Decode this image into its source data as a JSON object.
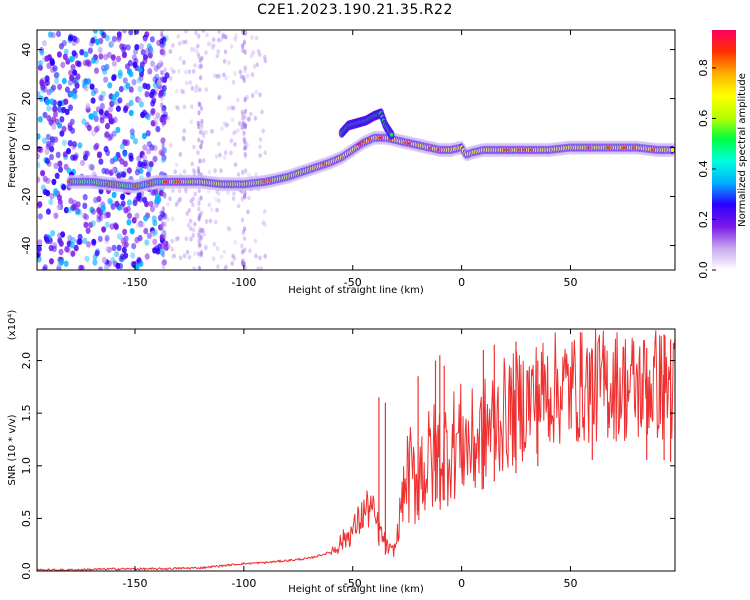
{
  "title": "C2E1.2023.190.21.35.R22",
  "chart_data": [
    {
      "type": "heatmap",
      "xlabel": "Height of straight line (km)",
      "ylabel": "Frequency (Hz)",
      "xlim": [
        -195,
        98
      ],
      "ylim": [
        -50,
        48
      ],
      "xticks": [
        -150,
        -100,
        -50,
        0,
        50
      ],
      "yticks": [
        -40,
        -20,
        0,
        20,
        40
      ],
      "colorbar": {
        "label": "Normalized spectral amplitude",
        "range": [
          0.0,
          0.95
        ],
        "ticks": [
          0.0,
          0.2,
          0.4,
          0.6,
          0.8
        ],
        "colors": [
          "#ffffff",
          "#c8a8f0",
          "#7a18e8",
          "#2a00ff",
          "#00b0ff",
          "#00ffe0",
          "#00ff40",
          "#b8ff00",
          "#ffff00",
          "#ffb000",
          "#ff3000",
          "#ff0060"
        ]
      },
      "ridge": {
        "x": [
          -180,
          -170,
          -160,
          -150,
          -140,
          -130,
          -120,
          -110,
          -100,
          -90,
          -80,
          -70,
          -60,
          -55,
          -50,
          -45,
          -40,
          -35,
          -30,
          -20,
          -10,
          -5,
          0,
          2,
          5,
          10,
          20,
          30,
          40,
          50,
          60,
          70,
          80,
          90,
          97
        ],
        "y": [
          -14,
          -14,
          -15,
          -16,
          -14,
          -14,
          -14,
          -15,
          -15,
          -14,
          -12,
          -9,
          -6,
          -4,
          -1,
          2,
          4,
          4,
          3,
          1,
          -1,
          -1,
          0,
          -3,
          -2,
          -1,
          -1,
          -1,
          -1,
          0,
          0,
          0,
          0,
          -1,
          -1
        ]
      },
      "secondary_branch": {
        "x": [
          -55,
          -52,
          -48,
          -44,
          -40,
          -37,
          -35,
          -32
        ],
        "y": [
          6,
          9,
          10,
          11,
          13,
          14,
          9,
          5
        ]
      }
    },
    {
      "type": "line",
      "xlabel": "Height of straight line (km)",
      "ylabel": "SNR (10 * v/v)",
      "multiplier": "(x10⁴)",
      "xlim": [
        -195,
        98
      ],
      "ylim": [
        0.0,
        2.3
      ],
      "xticks": [
        -150,
        -100,
        -50,
        0,
        50
      ],
      "yticks": [
        0.0,
        0.5,
        1.0,
        1.5,
        2.0
      ],
      "ytick_labels": [
        "0.0",
        "0.5",
        "1.0",
        "1.5",
        "2.0"
      ],
      "series": [
        {
          "color": "#ee3030",
          "x": [
            -195,
            -180,
            -160,
            -140,
            -120,
            -110,
            -100,
            -90,
            -80,
            -70,
            -60,
            -55,
            -50,
            -48,
            -45,
            -42,
            -40,
            -38,
            -36,
            -34,
            -32,
            -30,
            -28,
            -26,
            -24,
            -22,
            -20,
            -18,
            -16,
            -14,
            -12,
            -10,
            -8,
            -5,
            0,
            5,
            10,
            15,
            20,
            25,
            30,
            35,
            40,
            50,
            60,
            70,
            80,
            90,
            97
          ],
          "y": [
            0.01,
            0.01,
            0.02,
            0.02,
            0.03,
            0.05,
            0.07,
            0.08,
            0.1,
            0.12,
            0.18,
            0.28,
            0.38,
            0.45,
            0.55,
            0.62,
            0.5,
            0.4,
            0.3,
            0.22,
            0.18,
            0.25,
            0.6,
            0.8,
            0.92,
            0.85,
            0.95,
            1.0,
            0.98,
            1.05,
            1.1,
            1.1,
            1.12,
            1.2,
            1.25,
            1.18,
            1.3,
            1.42,
            1.48,
            1.55,
            1.62,
            1.66,
            1.72,
            1.74,
            1.76,
            1.78,
            1.74,
            1.78,
            1.72
          ],
          "spikes": [
            {
              "x": -38,
              "y": 1.65
            },
            {
              "x": -35,
              "y": 1.6
            },
            {
              "x": -20,
              "y": 1.85
            },
            {
              "x": -12,
              "y": 2.0
            },
            {
              "x": -10,
              "y": 2.05
            },
            {
              "x": -8,
              "y": 1.95
            },
            {
              "x": 10,
              "y": 2.1
            },
            {
              "x": 15,
              "y": 2.15
            },
            {
              "x": 25,
              "y": 2.18
            },
            {
              "x": 35,
              "y": 2.0
            },
            {
              "x": 60,
              "y": 2.1
            },
            {
              "x": 85,
              "y": 2.12
            },
            {
              "x": 93,
              "y": 2.25
            },
            {
              "x": 96,
              "y": 2.2
            }
          ]
        }
      ]
    }
  ]
}
